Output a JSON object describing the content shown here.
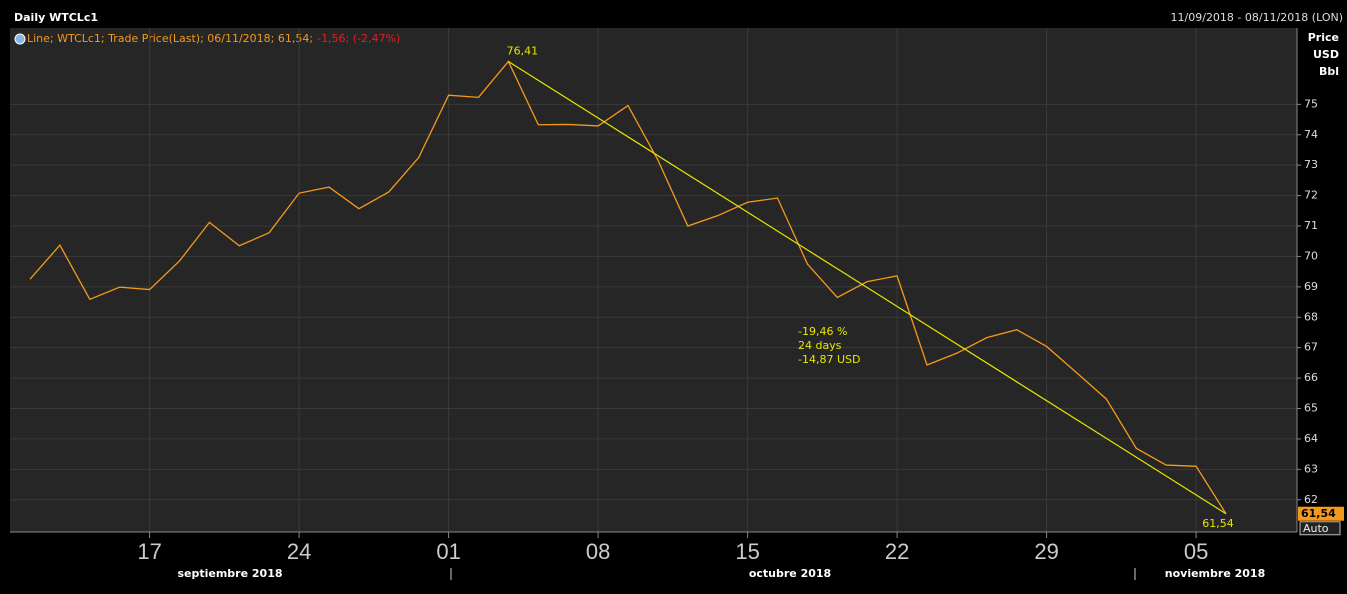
{
  "chart_data": {
    "type": "line",
    "title": "Daily WTCLc1",
    "date_range": "11/09/2018 - 08/11/2018 (LON)",
    "y_axis_label": [
      "Price",
      "USD",
      "Bbl"
    ],
    "legend": {
      "text": "Line; WTCLc1; Trade Price(Last); 06/11/2018; 61,54;",
      "change": "-1,56; (-2,47%)",
      "change_color": "#e02020"
    },
    "x": [
      "2018-09-11",
      "2018-09-12",
      "2018-09-13",
      "2018-09-14",
      "2018-09-17",
      "2018-09-18",
      "2018-09-19",
      "2018-09-20",
      "2018-09-21",
      "2018-09-24",
      "2018-09-25",
      "2018-09-26",
      "2018-09-27",
      "2018-09-28",
      "2018-10-01",
      "2018-10-02",
      "2018-10-03",
      "2018-10-04",
      "2018-10-05",
      "2018-10-08",
      "2018-10-09",
      "2018-10-10",
      "2018-10-11",
      "2018-10-12",
      "2018-10-15",
      "2018-10-16",
      "2018-10-17",
      "2018-10-18",
      "2018-10-19",
      "2018-10-22",
      "2018-10-23",
      "2018-10-24",
      "2018-10-25",
      "2018-10-26",
      "2018-10-29",
      "2018-10-30",
      "2018-10-31",
      "2018-11-01",
      "2018-11-02",
      "2018-11-05",
      "2018-11-06"
    ],
    "series": [
      {
        "name": "WTCLc1",
        "color": "#f5991c",
        "values": [
          69.25,
          70.37,
          68.59,
          68.99,
          68.91,
          69.85,
          71.12,
          70.35,
          70.78,
          72.08,
          72.28,
          71.57,
          72.12,
          73.25,
          75.3,
          75.23,
          76.41,
          74.33,
          74.34,
          74.29,
          74.96,
          73.17,
          71.0,
          71.34,
          71.78,
          71.92,
          69.75,
          68.65,
          69.17,
          69.36,
          66.43,
          66.82,
          67.33,
          67.59,
          67.04,
          66.18,
          65.31,
          63.69,
          63.14,
          63.1,
          61.54
        ]
      }
    ],
    "trend": {
      "x": [
        "2018-10-03",
        "2018-11-06"
      ],
      "values": [
        76.41,
        61.54
      ],
      "value_labels": [
        "76,41",
        "61,54"
      ],
      "color": "#e6e600",
      "stats": [
        "-19,46 %",
        "24 days",
        "-14,87 USD"
      ]
    },
    "last_value_label": "61,54",
    "scale_mode": "Auto",
    "xticks": [
      {
        "value": "2018-09-17",
        "label": "17"
      },
      {
        "value": "2018-09-24",
        "label": "24"
      },
      {
        "value": "2018-10-01",
        "label": "01"
      },
      {
        "value": "2018-10-08",
        "label": "08"
      },
      {
        "value": "2018-10-15",
        "label": "15"
      },
      {
        "value": "2018-10-22",
        "label": "22"
      },
      {
        "value": "2018-10-29",
        "label": "29"
      },
      {
        "value": "2018-11-05",
        "label": "05"
      }
    ],
    "months": [
      "septiembre 2018",
      "octubre 2018",
      "noviembre 2018"
    ],
    "ylim": [
      60.94,
      77.51
    ],
    "yticks": [
      62,
      63,
      64,
      65,
      66,
      67,
      68,
      69,
      70,
      71,
      72,
      73,
      74,
      75
    ],
    "grid": true
  }
}
